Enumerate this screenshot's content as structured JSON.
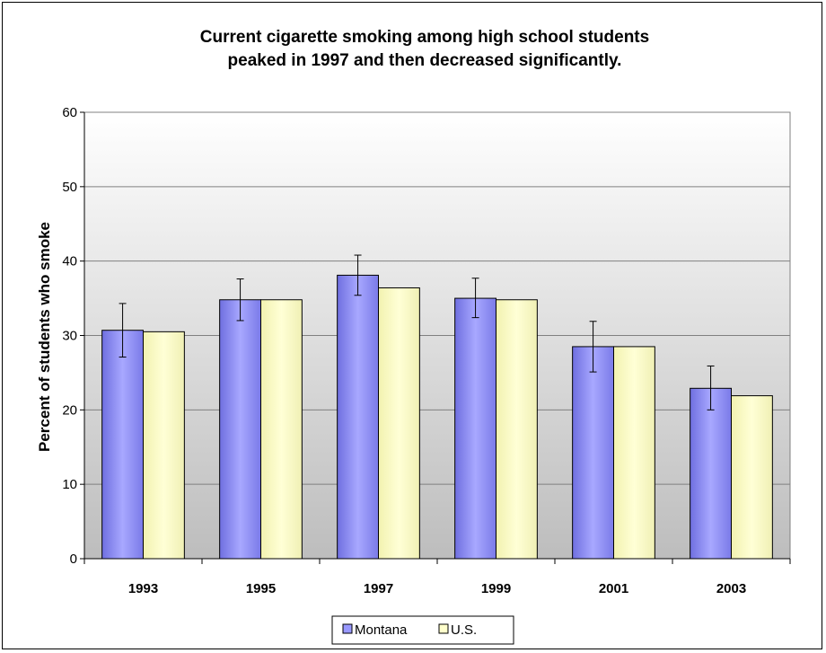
{
  "chart_data": {
    "type": "bar",
    "title_lines": [
      "Current cigarette smoking among high school students",
      "peaked in 1997 and then decreased significantly."
    ],
    "xlabel": "",
    "ylabel": "Percent of students who smoke",
    "categories": [
      "1993",
      "1995",
      "1997",
      "1999",
      "2001",
      "2003"
    ],
    "series": [
      {
        "name": "Montana",
        "values": [
          30.7,
          34.8,
          38.1,
          35.0,
          28.5,
          22.9
        ],
        "error_low": [
          27.1,
          32.0,
          35.4,
          32.4,
          25.1,
          20.0
        ],
        "error_high": [
          34.3,
          37.6,
          40.8,
          37.7,
          31.9,
          25.9
        ],
        "color": "#9999ff"
      },
      {
        "name": "U.S.",
        "values": [
          30.5,
          34.8,
          36.4,
          34.8,
          28.5,
          21.9
        ],
        "color": "#ffffcc"
      }
    ],
    "ylim": [
      0,
      60
    ],
    "yticks": [
      0,
      10,
      20,
      30,
      40,
      50,
      60
    ],
    "grid": true,
    "legend_position": "bottom"
  }
}
